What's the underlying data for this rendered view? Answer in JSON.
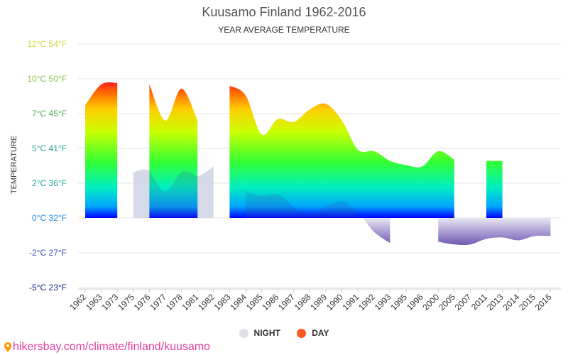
{
  "chart_data": {
    "type": "area",
    "title": "Kuusamo Finland 1962-2016",
    "subtitle": "YEAR AVERAGE TEMPERATURE",
    "ylabel": "TEMPERATURE",
    "categories": [
      "1962",
      "1963",
      "1973",
      "1975",
      "1976",
      "1977",
      "1978",
      "1981",
      "1982",
      "1983",
      "1984",
      "1985",
      "1986",
      "1987",
      "1988",
      "1989",
      "1990",
      "1991",
      "1992",
      "1993",
      "1995",
      "1996",
      "2000",
      "2005",
      "2007",
      "2011",
      "2013",
      "2014",
      "2015",
      "2016"
    ],
    "y_ticks": [
      {
        "value": 12.5,
        "label": "12°C 54°F",
        "color": "#cddc39"
      },
      {
        "value": 10,
        "label": "10°C 50°F",
        "color": "#8bc34a"
      },
      {
        "value": 7.5,
        "label": "7°C 45°F",
        "color": "#4caf50"
      },
      {
        "value": 5,
        "label": "5°C 41°F",
        "color": "#26a69a"
      },
      {
        "value": 2.5,
        "label": "2°C 36°F",
        "color": "#26a69a"
      },
      {
        "value": 0,
        "label": "0°C 32°F",
        "color": "#1e88e5"
      },
      {
        "value": -2.5,
        "label": "-2°C 27°F",
        "color": "#3f51b5"
      },
      {
        "value": -5,
        "label": "-5°C 23°F",
        "color": "#1a237e"
      }
    ],
    "ylim": [
      -5,
      12.5
    ],
    "grid": true,
    "legend_position": "bottom",
    "series": [
      {
        "name": "NIGHT",
        "color": "#dde0ea",
        "values": [
          null,
          null,
          null,
          3.3,
          3.4,
          1.9,
          3.3,
          3.0,
          3.7,
          null,
          1.9,
          1.6,
          1.7,
          0.8,
          0.3,
          0.8,
          1.2,
          0.4,
          -1.0,
          -1.8,
          null,
          null,
          -1.7,
          -1.9,
          -1.9,
          -1.5,
          -1.4,
          -1.6,
          -1.3,
          -1.3
        ]
      },
      {
        "name": "DAY",
        "color": "#ff5722",
        "values": [
          8.1,
          9.6,
          9.7,
          null,
          9.6,
          7.0,
          9.3,
          7.0,
          null,
          9.5,
          8.8,
          6.0,
          7.1,
          6.9,
          7.8,
          8.2,
          7.0,
          4.9,
          4.8,
          4.1,
          3.8,
          3.7,
          4.8,
          4.2,
          null,
          4.1,
          4.1,
          null,
          null,
          null
        ]
      }
    ]
  },
  "legend": {
    "night_label": "NIGHT",
    "day_label": "DAY"
  },
  "footer": {
    "text": "hikersbay.com/climate/finland/kuusamo"
  }
}
